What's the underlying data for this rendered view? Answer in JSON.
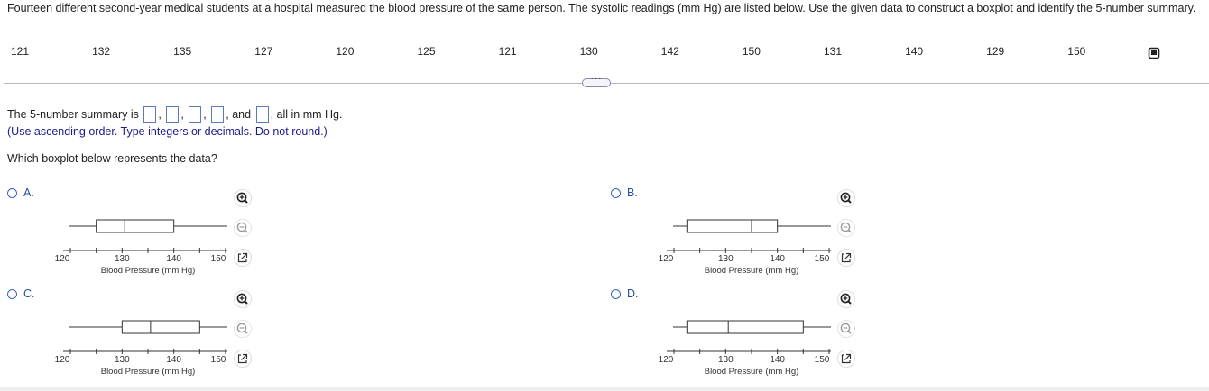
{
  "question": {
    "text": "Fourteen different second-year medical students at a hospital measured the blood pressure of the same person. The systolic readings (mm Hg) are listed below. Use the given data to construct a boxplot and identify the 5-number summary."
  },
  "data_values": [
    "121",
    "132",
    "135",
    "127",
    "120",
    "125",
    "121",
    "130",
    "142",
    "150",
    "131",
    "140",
    "129",
    "150"
  ],
  "summary": {
    "prefix": "The 5-number summary is",
    "comma": ",",
    "and": ", and",
    "suffix": "all in mm Hg.",
    "hint": "(Use ascending order. Type integers or decimals. Do not round.)"
  },
  "boxplot_question": "Which boxplot below represents the data?",
  "more_button": "···",
  "options": [
    {
      "label": "A.",
      "min": 120,
      "q1": 125,
      "median": 130.5,
      "q3": 140,
      "max": 150
    },
    {
      "label": "B.",
      "min": 120,
      "q1": 122.5,
      "median": 135,
      "q3": 140,
      "max": 150
    },
    {
      "label": "C.",
      "min": 120,
      "q1": 130,
      "median": 135.5,
      "q3": 145,
      "max": 150
    },
    {
      "label": "D.",
      "min": 120,
      "q1": 122.5,
      "median": 130.5,
      "q3": 145,
      "max": 150
    }
  ],
  "axis": {
    "min": 120,
    "max": 150,
    "ticks": [
      120,
      125,
      130,
      135,
      140,
      145,
      150
    ],
    "tick_labels": [
      "120",
      "130",
      "140",
      "150"
    ],
    "xlabel": "Blood Pressure (mm Hg)"
  },
  "tool_icons": [
    "zoom-in-icon",
    "zoom-out-icon",
    "popout-icon"
  ]
}
